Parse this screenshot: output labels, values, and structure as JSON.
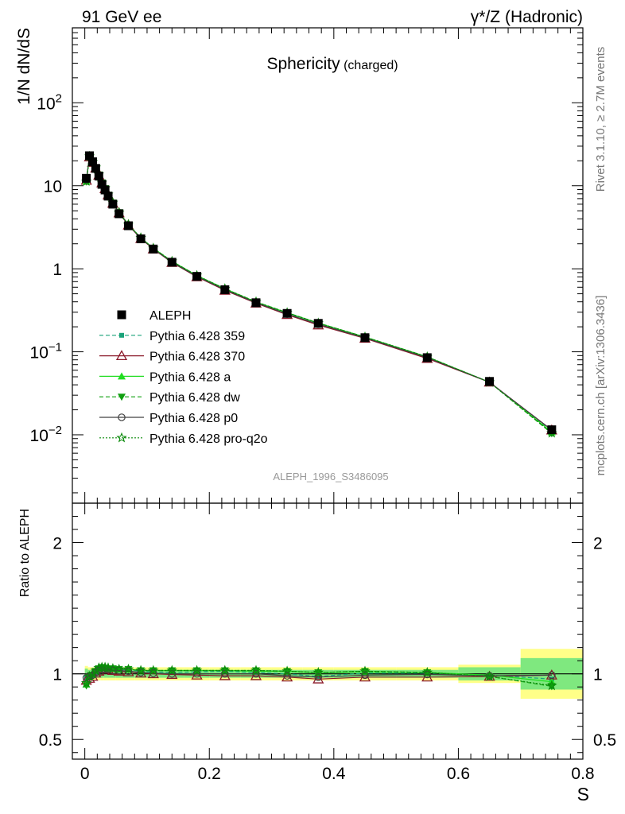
{
  "header": {
    "left": "91 GeV ee",
    "right": "γ*/Z (Hadronic)"
  },
  "side": {
    "rivet": "Rivet 3.1.10, ≥ 2.7M events",
    "mcplots": "mcplots.cern.ch [arXiv:1306.3436]"
  },
  "colors": {
    "aleph": "#000000",
    "p359": "#1aa37a",
    "p370": "#8b1a2a",
    "pa": "#22dd22",
    "pdw": "#10a010",
    "pp0": "#404040",
    "pq2o": "#0a8a0a",
    "band_inner": "#7fe87f",
    "band_outer": "#ffff88"
  },
  "chart_data": [
    {
      "type": "line",
      "title": "Sphericity",
      "subtitle": "(charged)",
      "xlabel": "",
      "ylabel": "1/N dN/dS",
      "yscale": "log",
      "ylim": [
        0.0015,
        800
      ],
      "xlim": [
        -0.02,
        0.8
      ],
      "yticks": [
        {
          "v": 100,
          "mant": "10",
          "exp": "2"
        },
        {
          "v": 10,
          "mant": "10",
          "exp": ""
        },
        {
          "v": 1,
          "mant": "1",
          "exp": ""
        },
        {
          "v": 0.1,
          "mant": "10",
          "exp": "−1"
        },
        {
          "v": 0.01,
          "mant": "10",
          "exp": "−2"
        }
      ],
      "analysis_id": "ALEPH_1996_S3486095",
      "legend_position": "middle-left",
      "x": [
        0.0025,
        0.0075,
        0.0125,
        0.0175,
        0.0225,
        0.0275,
        0.0325,
        0.0375,
        0.045,
        0.055,
        0.07,
        0.09,
        0.11,
        0.14,
        0.18,
        0.225,
        0.275,
        0.325,
        0.375,
        0.45,
        0.55,
        0.65,
        0.75
      ],
      "series": [
        {
          "name": "ALEPH",
          "color_key": "aleph",
          "marker": "square",
          "line": "none",
          "values": [
            12.3,
            23.0,
            19.5,
            16.2,
            13.1,
            10.4,
            8.9,
            7.5,
            6.0,
            4.6,
            3.3,
            2.3,
            1.73,
            1.2,
            0.81,
            0.56,
            0.39,
            0.29,
            0.22,
            0.148,
            0.085,
            0.044,
            0.0115
          ]
        },
        {
          "name": "Pythia 6.428 359",
          "color_key": "p359",
          "marker": "square-small",
          "line": "dashed",
          "values": [
            11.9,
            22.3,
            19.2,
            16.3,
            13.4,
            10.8,
            9.3,
            7.8,
            6.25,
            4.75,
            3.4,
            2.35,
            1.76,
            1.22,
            0.82,
            0.57,
            0.395,
            0.29,
            0.215,
            0.149,
            0.086,
            0.043,
            0.011
          ]
        },
        {
          "name": "Pythia 6.428 370",
          "color_key": "p370",
          "marker": "triangle-open",
          "line": "solid",
          "values": [
            11.6,
            22.2,
            19.1,
            16.3,
            13.4,
            10.8,
            9.2,
            7.75,
            6.15,
            4.7,
            3.35,
            2.31,
            1.73,
            1.19,
            0.8,
            0.55,
            0.385,
            0.28,
            0.21,
            0.145,
            0.083,
            0.043,
            0.0114
          ]
        },
        {
          "name": "Pythia 6.428 a",
          "color_key": "pa",
          "marker": "triangle",
          "line": "solid",
          "values": [
            11.3,
            22.5,
            19.4,
            16.6,
            13.6,
            10.9,
            9.3,
            7.85,
            6.25,
            4.78,
            3.42,
            2.36,
            1.77,
            1.23,
            0.83,
            0.575,
            0.398,
            0.295,
            0.222,
            0.151,
            0.087,
            0.043,
            0.0108
          ]
        },
        {
          "name": "Pythia 6.428 dw",
          "color_key": "pdw",
          "marker": "triangle-down",
          "line": "dashed",
          "values": [
            11.2,
            22.4,
            19.3,
            16.5,
            13.6,
            10.9,
            9.3,
            7.8,
            6.25,
            4.77,
            3.41,
            2.35,
            1.77,
            1.23,
            0.83,
            0.575,
            0.4,
            0.296,
            0.222,
            0.151,
            0.087,
            0.043,
            0.0104
          ]
        },
        {
          "name": "Pythia 6.428 p0",
          "color_key": "pp0",
          "marker": "circle-open",
          "line": "solid",
          "values": [
            11.9,
            22.6,
            19.3,
            16.4,
            13.4,
            10.7,
            9.2,
            7.75,
            6.15,
            4.72,
            3.38,
            2.33,
            1.74,
            1.2,
            0.81,
            0.56,
            0.39,
            0.285,
            0.215,
            0.147,
            0.085,
            0.043,
            0.0114
          ]
        },
        {
          "name": "Pythia 6.428 pro-q2o",
          "color_key": "pq2o",
          "marker": "star-open",
          "line": "dotted",
          "values": [
            11.3,
            22.6,
            19.5,
            16.6,
            13.7,
            10.9,
            9.35,
            7.85,
            6.25,
            4.77,
            3.42,
            2.36,
            1.77,
            1.23,
            0.83,
            0.575,
            0.4,
            0.296,
            0.222,
            0.151,
            0.087,
            0.043,
            0.0105
          ]
        }
      ]
    },
    {
      "type": "line",
      "title": "",
      "xlabel": "S",
      "ylabel": "Ratio to ALEPH",
      "ylim": [
        0.35,
        2.3
      ],
      "xlim": [
        -0.02,
        0.8
      ],
      "yticks": [
        0.5,
        1,
        2
      ],
      "ytick_labels": [
        "0.5",
        "1",
        "2"
      ],
      "xticks": [
        0,
        0.2,
        0.4,
        0.6,
        0.8
      ],
      "xtick_labels": [
        "0",
        "0.2",
        "0.4",
        "0.6",
        "0.8"
      ],
      "band_edges": [
        0,
        0.005,
        0.01,
        0.015,
        0.02,
        0.025,
        0.03,
        0.035,
        0.04,
        0.05,
        0.06,
        0.08,
        0.1,
        0.12,
        0.16,
        0.2,
        0.25,
        0.3,
        0.35,
        0.4,
        0.5,
        0.6,
        0.7,
        0.8
      ],
      "band_inner": [
        0.04,
        0.03,
        0.03,
        0.03,
        0.03,
        0.03,
        0.03,
        0.03,
        0.03,
        0.03,
        0.03,
        0.03,
        0.03,
        0.03,
        0.03,
        0.03,
        0.03,
        0.03,
        0.03,
        0.03,
        0.03,
        0.05,
        0.12
      ],
      "band_outer": [
        0.06,
        0.05,
        0.05,
        0.05,
        0.05,
        0.05,
        0.05,
        0.05,
        0.05,
        0.05,
        0.05,
        0.05,
        0.05,
        0.05,
        0.05,
        0.05,
        0.05,
        0.05,
        0.05,
        0.05,
        0.05,
        0.07,
        0.19
      ],
      "x": [
        0.0025,
        0.0075,
        0.0125,
        0.0175,
        0.0225,
        0.0275,
        0.0325,
        0.0375,
        0.045,
        0.055,
        0.07,
        0.09,
        0.11,
        0.14,
        0.18,
        0.225,
        0.275,
        0.325,
        0.375,
        0.45,
        0.55,
        0.65,
        0.75
      ],
      "series": [
        {
          "name": "Pythia 6.428 359",
          "color_key": "p359",
          "marker": "square-small",
          "line": "dashed",
          "values": [
            0.97,
            0.97,
            0.985,
            1.005,
            1.02,
            1.04,
            1.045,
            1.04,
            1.04,
            1.035,
            1.03,
            1.02,
            1.015,
            1.01,
            1.015,
            1.02,
            1.01,
            1.0,
            0.98,
            1.005,
            1.005,
            0.99,
            0.96
          ]
        },
        {
          "name": "Pythia 6.428 370",
          "color_key": "p370",
          "marker": "triangle-open",
          "line": "solid",
          "values": [
            0.95,
            0.965,
            0.98,
            1.005,
            1.02,
            1.04,
            1.035,
            1.035,
            1.025,
            1.02,
            1.015,
            1.005,
            1.0,
            0.995,
            0.99,
            0.985,
            0.985,
            0.975,
            0.96,
            0.975,
            0.975,
            0.98,
            0.99
          ]
        },
        {
          "name": "Pythia 6.428 a",
          "color_key": "pa",
          "marker": "triangle",
          "line": "solid",
          "values": [
            0.92,
            0.98,
            0.995,
            1.025,
            1.04,
            1.05,
            1.05,
            1.045,
            1.04,
            1.04,
            1.035,
            1.025,
            1.025,
            1.025,
            1.025,
            1.025,
            1.02,
            1.02,
            1.01,
            1.015,
            1.01,
            0.99,
            0.94
          ]
        },
        {
          "name": "Pythia 6.428 dw",
          "color_key": "pdw",
          "marker": "triangle-down",
          "line": "dashed",
          "values": [
            0.91,
            0.975,
            0.99,
            1.02,
            1.04,
            1.05,
            1.045,
            1.04,
            1.04,
            1.035,
            1.035,
            1.025,
            1.025,
            1.025,
            1.025,
            1.025,
            1.025,
            1.02,
            1.01,
            1.02,
            1.01,
            0.98,
            0.905
          ]
        },
        {
          "name": "Pythia 6.428 p0",
          "color_key": "pp0",
          "marker": "circle-open",
          "line": "solid",
          "values": [
            0.97,
            0.985,
            0.99,
            1.01,
            1.025,
            1.03,
            1.035,
            1.035,
            1.025,
            1.025,
            1.02,
            1.01,
            1.005,
            1.0,
            1.0,
            1.0,
            1.0,
            0.985,
            0.975,
            0.99,
            0.995,
            0.985,
            0.99
          ]
        },
        {
          "name": "Pythia 6.428 pro-q2o",
          "color_key": "pq2o",
          "marker": "star-open",
          "line": "dotted",
          "values": [
            0.93,
            0.98,
            1.0,
            1.025,
            1.045,
            1.05,
            1.05,
            1.045,
            1.04,
            1.035,
            1.035,
            1.025,
            1.025,
            1.025,
            1.025,
            1.025,
            1.025,
            1.02,
            1.01,
            1.02,
            1.01,
            0.98,
            0.91
          ]
        }
      ]
    }
  ]
}
